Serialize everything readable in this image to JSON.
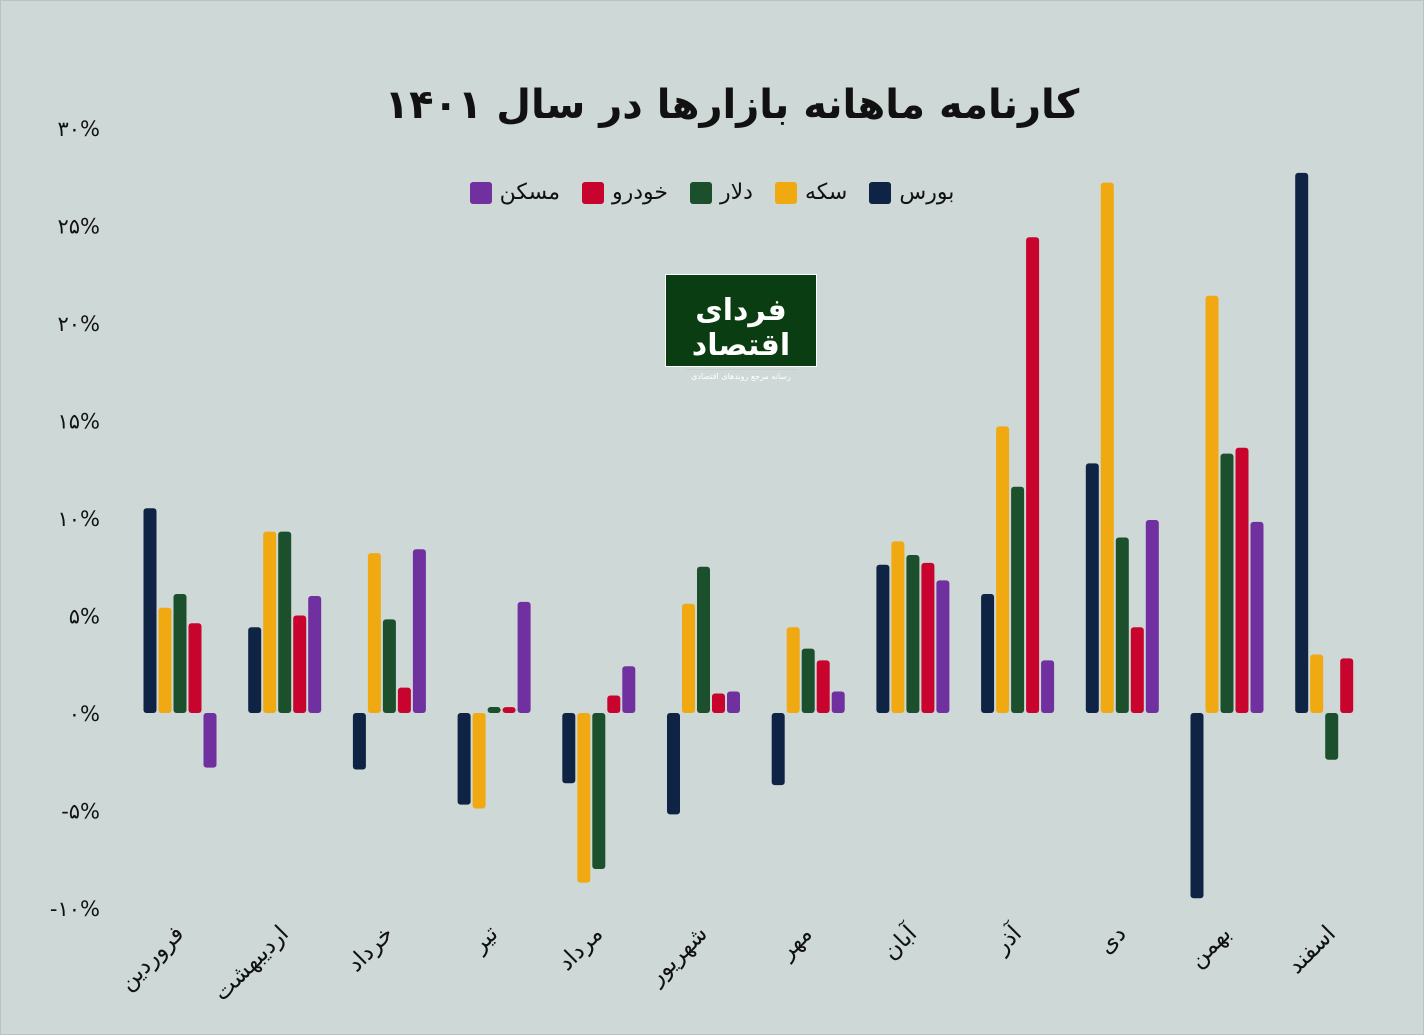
{
  "chart_data": {
    "type": "bar",
    "title": "کارنامه ماهانه بازارها در سال ۱۴۰۱",
    "xlabel": "",
    "ylabel": "",
    "ylim": [
      -10,
      30
    ],
    "yticks": [
      30,
      25,
      20,
      15,
      10,
      5,
      0,
      -5,
      -10
    ],
    "ytick_labels": [
      "۳۰%",
      "۲۵%",
      "۲۰%",
      "۱۵%",
      "۱۰%",
      "۵%",
      "۰%",
      "-۵%",
      "-۱۰%"
    ],
    "legend_position": "top-center",
    "categories": [
      "فروردین",
      "اردیبهشت",
      "خرداد",
      "تیر",
      "مرداد",
      "شهریور",
      "مهر",
      "آبان",
      "آذر",
      "دی",
      "بهمن",
      "اسفند"
    ],
    "series": [
      {
        "name": "بورس",
        "color": "#0f2444",
        "values": [
          10.5,
          4.4,
          -2.9,
          -4.7,
          -3.6,
          -5.2,
          -3.7,
          7.6,
          6.1,
          12.8,
          -9.5,
          27.7
        ]
      },
      {
        "name": "سکه",
        "color": "#f0a911",
        "values": [
          5.4,
          9.3,
          8.2,
          -4.9,
          -8.7,
          5.6,
          4.4,
          8.8,
          14.7,
          27.2,
          21.4,
          3.0
        ]
      },
      {
        "name": "دلار",
        "color": "#1c502d",
        "values": [
          6.1,
          9.3,
          4.8,
          0,
          -8.0,
          7.5,
          3.3,
          8.1,
          11.6,
          9.0,
          13.3,
          -2.4
        ]
      },
      {
        "name": "خودرو",
        "color": "#c8042e",
        "values": [
          4.6,
          5.0,
          1.3,
          0.3,
          0.9,
          1.0,
          2.7,
          7.7,
          24.4,
          4.4,
          13.6,
          2.8
        ]
      },
      {
        "name": "مسکن",
        "color": "#7030a0",
        "values": [
          -2.8,
          6.0,
          8.4,
          5.7,
          2.4,
          1.1,
          1.1,
          6.8,
          2.7,
          9.9,
          9.8,
          null
        ]
      }
    ]
  },
  "logo": {
    "name": "فردای اقتصاد",
    "tagline": "رسانه مرجع روندهای اقتصادی"
  }
}
